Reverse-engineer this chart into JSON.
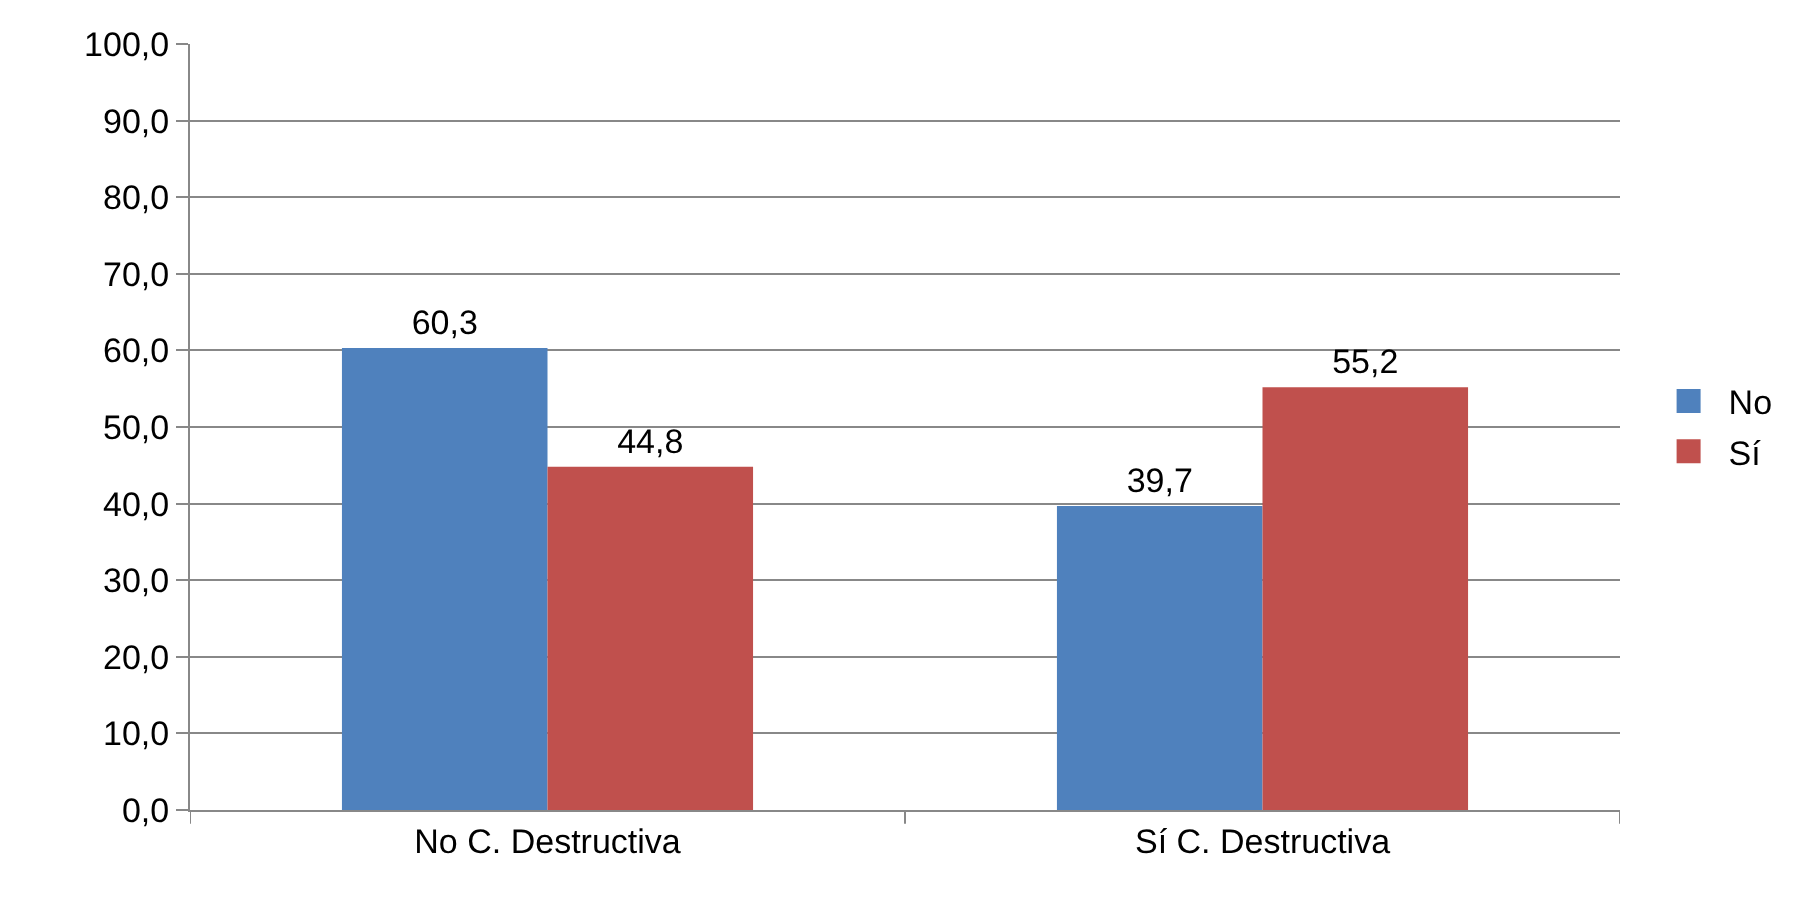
{
  "chart_data": {
    "type": "bar",
    "categories": [
      "No C. Destructiva",
      "Sí C. Destructiva"
    ],
    "series": [
      {
        "name": "No",
        "color": "#4f81bd",
        "values": [
          60.3,
          39.7
        ],
        "value_labels": [
          "60,3",
          "39,7"
        ]
      },
      {
        "name": "Sí",
        "color": "#c0504d",
        "values": [
          44.8,
          55.2
        ],
        "value_labels": [
          "44,8",
          "55,2"
        ]
      }
    ],
    "ylim": [
      0,
      100
    ],
    "yticks": [
      {
        "value": 0,
        "label": "0,0"
      },
      {
        "value": 10,
        "label": "10,0"
      },
      {
        "value": 20,
        "label": "20,0"
      },
      {
        "value": 30,
        "label": "30,0"
      },
      {
        "value": 40,
        "label": "40,0"
      },
      {
        "value": 50,
        "label": "50,0"
      },
      {
        "value": 60,
        "label": "60,0"
      },
      {
        "value": 70,
        "label": "70,0"
      },
      {
        "value": 80,
        "label": "80,0"
      },
      {
        "value": 90,
        "label": "90,0"
      },
      {
        "value": 100,
        "label": "100,0"
      }
    ],
    "grid": "y",
    "legend": "right"
  }
}
